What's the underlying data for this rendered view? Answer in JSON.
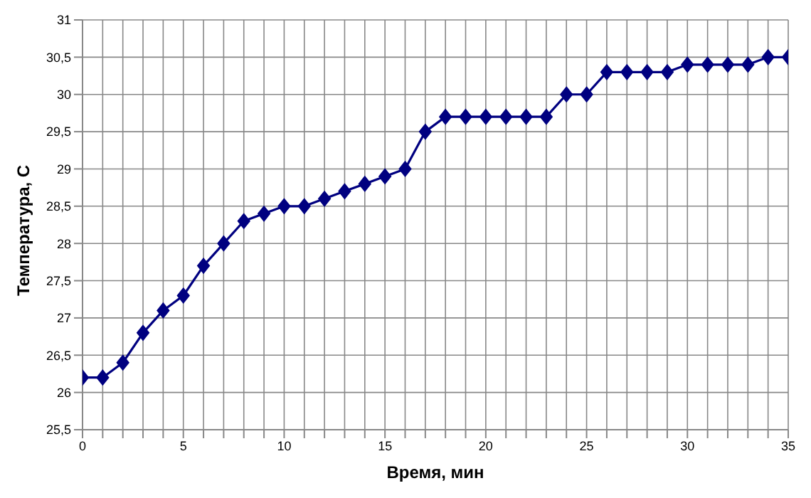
{
  "chart_data": {
    "type": "line",
    "xlabel": "Время, мин",
    "ylabel": "Температура, С",
    "x": [
      0,
      1,
      2,
      3,
      4,
      5,
      6,
      7,
      8,
      9,
      10,
      11,
      12,
      13,
      14,
      15,
      16,
      17,
      18,
      19,
      20,
      21,
      22,
      23,
      24,
      25,
      26,
      27,
      28,
      29,
      30,
      31,
      32,
      33,
      34,
      35
    ],
    "series": [
      {
        "color": "#000080",
        "values": [
          26.2,
          26.2,
          26.4,
          26.8,
          27.1,
          27.3,
          27.7,
          28.0,
          28.3,
          28.4,
          28.5,
          28.5,
          28.6,
          28.7,
          28.8,
          28.9,
          29.0,
          29.5,
          29.7,
          29.7,
          29.7,
          29.7,
          29.7,
          29.7,
          30.0,
          30.0,
          30.3,
          30.3,
          30.3,
          30.3,
          30.4,
          30.4,
          30.4,
          30.4,
          30.5,
          30.5
        ]
      }
    ],
    "xlim": [
      0,
      35
    ],
    "xticks": [
      0,
      {
        "value": 1,
        "label": null
      },
      {
        "value": 2,
        "label": null
      },
      {
        "value": 3,
        "label": null
      },
      {
        "value": 4,
        "label": null
      },
      5,
      {
        "value": 6,
        "label": null
      },
      {
        "value": 7,
        "label": null
      },
      {
        "value": 8,
        "label": null
      },
      {
        "value": 9,
        "label": null
      },
      10,
      {
        "value": 11,
        "label": null
      },
      {
        "value": 12,
        "label": null
      },
      {
        "value": 13,
        "label": null
      },
      {
        "value": 14,
        "label": null
      },
      15,
      {
        "value": 16,
        "label": null
      },
      {
        "value": 17,
        "label": null
      },
      {
        "value": 18,
        "label": null
      },
      {
        "value": 19,
        "label": null
      },
      20,
      {
        "value": 21,
        "label": null
      },
      {
        "value": 22,
        "label": null
      },
      {
        "value": 23,
        "label": null
      },
      {
        "value": 24,
        "label": null
      },
      25,
      {
        "value": 26,
        "label": null
      },
      {
        "value": 27,
        "label": null
      },
      {
        "value": 28,
        "label": null
      },
      {
        "value": 29,
        "label": null
      },
      30,
      {
        "value": 31,
        "label": null
      },
      {
        "value": 32,
        "label": null
      },
      {
        "value": 33,
        "label": null
      },
      {
        "value": 34,
        "label": null
      },
      35
    ],
    "ylim": [
      25.5,
      31
    ],
    "yticks": [
      {
        "value": 25.5,
        "label": "25,5"
      },
      26,
      {
        "value": 26.5,
        "label": "26,5"
      },
      27,
      {
        "value": 27.5,
        "label": "27,5"
      },
      28,
      {
        "value": 28.5,
        "label": "28,5"
      },
      29,
      {
        "value": 29.5,
        "label": "29,5"
      },
      30,
      {
        "value": 30.5,
        "label": "30,5"
      },
      31
    ],
    "grid": true,
    "marker": "diamond",
    "line_style": "solid",
    "legend": false
  }
}
